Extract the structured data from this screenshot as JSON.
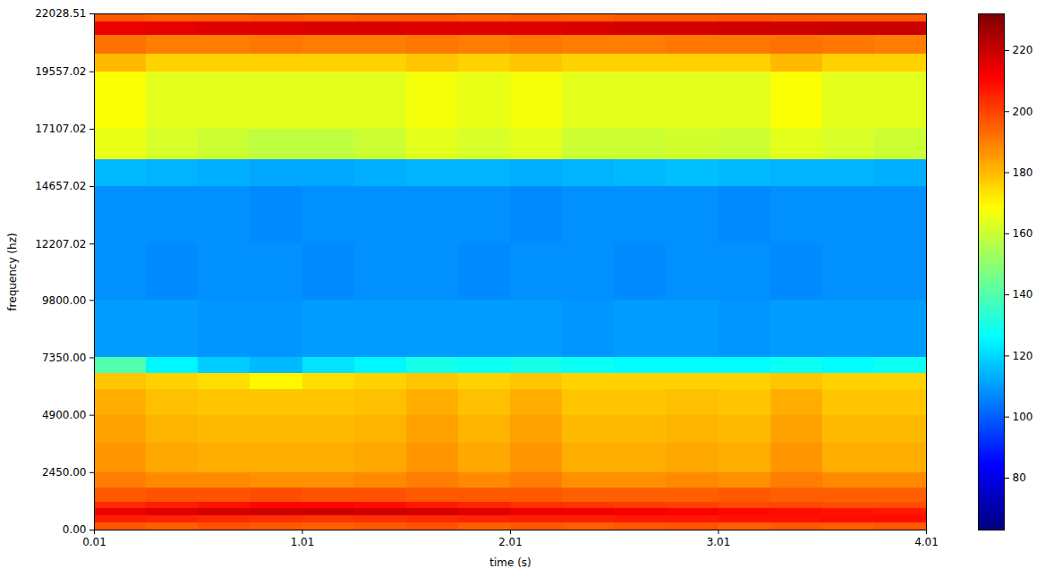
{
  "chart_data": {
    "type": "heatmap",
    "color": "jet",
    "x_label": "time (s)",
    "y_label": "frequency (hz)",
    "xlim": [
      0.01,
      4.01
    ],
    "xticks": [
      0.01,
      1.01,
      2.01,
      3.01,
      4.01
    ],
    "ylim": [
      0,
      22028.51
    ],
    "yticks": [
      {
        "value": 0,
        "label": "0.00"
      },
      {
        "value": 2450,
        "label": "2450.00"
      },
      {
        "value": 4900,
        "label": "4900.00"
      },
      {
        "value": 7350,
        "label": "7350.00"
      },
      {
        "value": 9800,
        "label": "9800.00"
      },
      {
        "value": 12207.02,
        "label": "12207.02"
      },
      {
        "value": 14657.02,
        "label": "14657.02"
      },
      {
        "value": 17107.02,
        "label": "17107.02"
      },
      {
        "value": 19557.02,
        "label": "19557.02"
      },
      {
        "value": 22028.51,
        "label": "22028.51"
      }
    ],
    "x_edges": [
      0.01,
      0.26,
      0.51,
      0.76,
      1.01,
      1.26,
      1.51,
      1.76,
      2.01,
      2.26,
      2.51,
      2.76,
      3.01,
      3.26,
      3.51,
      3.76,
      4.01
    ],
    "y_edges": [
      0,
      300,
      600,
      900,
      1200,
      1800,
      2450,
      3700,
      4900,
      6000,
      6700,
      7350,
      9800,
      12207.02,
      14657.02,
      15800,
      17107.02,
      19557.02,
      20300,
      21100,
      21700,
      22028.51
    ],
    "cells": [
      [
        196,
        195,
        197,
        196,
        195,
        196,
        197,
        195,
        196,
        195,
        196,
        197,
        195,
        196,
        195,
        196
      ],
      [
        206,
        205,
        204,
        203,
        202,
        203,
        204,
        205,
        206,
        206,
        207,
        207,
        208,
        208,
        209,
        209
      ],
      [
        214,
        216,
        218,
        219,
        220,
        219,
        218,
        216,
        214,
        213,
        212,
        211,
        210,
        209,
        208,
        207
      ],
      [
        204,
        206,
        208,
        210,
        210,
        209,
        207,
        205,
        203,
        202,
        201,
        200,
        199,
        199,
        198,
        198
      ],
      [
        196,
        197,
        197,
        198,
        197,
        197,
        196,
        196,
        196,
        195,
        195,
        195,
        196,
        195,
        195,
        195
      ],
      [
        190,
        188,
        188,
        187,
        187,
        188,
        190,
        188,
        190,
        187,
        187,
        188,
        187,
        190,
        188,
        188
      ],
      [
        186,
        183,
        182,
        182,
        182,
        183,
        186,
        183,
        186,
        182,
        182,
        183,
        182,
        186,
        182,
        182
      ],
      [
        184,
        181,
        180,
        180,
        180,
        181,
        184,
        181,
        184,
        180,
        180,
        181,
        180,
        184,
        180,
        180
      ],
      [
        182,
        179,
        178,
        178,
        178,
        179,
        182,
        179,
        182,
        178,
        178,
        179,
        178,
        182,
        178,
        178
      ],
      [
        178,
        176,
        174,
        170,
        174,
        176,
        178,
        176,
        178,
        176,
        176,
        176,
        176,
        178,
        176,
        176
      ],
      [
        140,
        125,
        118,
        115,
        122,
        125,
        130,
        128,
        130,
        128,
        126,
        126,
        126,
        128,
        126,
        128
      ],
      [
        110,
        110,
        109,
        109,
        110,
        110,
        110,
        110,
        110,
        109,
        110,
        110,
        109,
        110,
        110,
        110
      ],
      [
        108,
        107,
        108,
        108,
        107,
        108,
        108,
        107,
        108,
        108,
        107,
        108,
        108,
        107,
        108,
        108
      ],
      [
        108,
        108,
        108,
        107,
        108,
        108,
        108,
        108,
        107,
        108,
        108,
        108,
        107,
        108,
        108,
        108
      ],
      [
        115,
        114,
        113,
        112,
        112,
        113,
        114,
        114,
        113,
        114,
        115,
        116,
        115,
        114,
        114,
        113
      ],
      [
        165,
        162,
        160,
        158,
        158,
        160,
        164,
        162,
        164,
        160,
        160,
        161,
        160,
        164,
        162,
        160
      ],
      [
        168,
        164,
        164,
        164,
        164,
        164,
        167,
        165,
        167,
        164,
        164,
        164,
        164,
        168,
        164,
        164
      ],
      [
        180,
        176,
        176,
        176,
        176,
        176,
        178,
        176,
        178,
        176,
        176,
        176,
        176,
        180,
        176,
        176
      ],
      [
        192,
        190,
        190,
        191,
        190,
        190,
        191,
        190,
        191,
        190,
        190,
        191,
        191,
        192,
        191,
        190
      ],
      [
        214,
        215,
        216,
        216,
        217,
        217,
        216,
        216,
        216,
        217,
        218,
        218,
        219,
        219,
        220,
        220
      ],
      [
        196,
        195,
        195,
        196,
        195,
        196,
        196,
        195,
        196,
        195,
        196,
        196,
        197,
        196,
        196,
        196
      ]
    ],
    "colorbar": {
      "range": [
        63,
        232
      ],
      "ticks": [
        80,
        100,
        120,
        140,
        160,
        180,
        200,
        220
      ]
    }
  }
}
